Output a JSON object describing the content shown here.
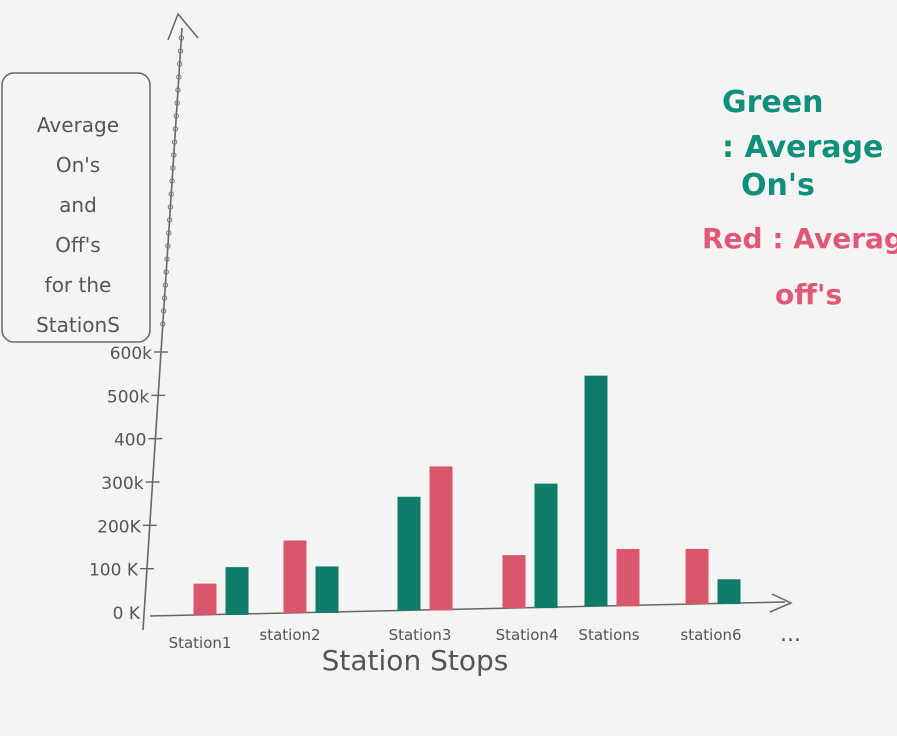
{
  "chart_data": {
    "type": "bar",
    "title_lines": [
      "Average",
      "On's",
      "and",
      "Off's",
      "for the",
      "StationS"
    ],
    "xlabel": "Station Stops",
    "ylabel": "",
    "categories": [
      "Station1",
      "station2",
      "Station3",
      "Station4",
      "Stations",
      "station6"
    ],
    "x_continuation": "...",
    "series": [
      {
        "name": "Average Off's",
        "color": "#d9566f",
        "values": [
          70,
          165,
          330,
          120,
          130,
          125
        ]
      },
      {
        "name": "Average On's",
        "color": "#0f7c6a",
        "values": [
          108,
          105,
          260,
          285,
          530,
          55
        ]
      }
    ],
    "bar_order": [
      [
        "Average Off's",
        "Average On's"
      ],
      [
        "Average Off's",
        "Average On's"
      ],
      [
        "Average On's",
        "Average Off's"
      ],
      [
        "Average Off's",
        "Average On's"
      ],
      [
        "Average On's",
        "Average Off's"
      ],
      [
        "Average Off's",
        "Average On's"
      ]
    ],
    "yticks": [
      {
        "value": 0,
        "label": "0 K"
      },
      {
        "value": 100,
        "label": "100 K"
      },
      {
        "value": 200,
        "label": "200K"
      },
      {
        "value": 300,
        "label": "300k"
      },
      {
        "value": 400,
        "label": "400"
      },
      {
        "value": 500,
        "label": "500k"
      },
      {
        "value": 600,
        "label": "600k"
      }
    ],
    "ylim": [
      0,
      600
    ],
    "grid": false,
    "legend": {
      "position": "top-right",
      "entries": [
        {
          "text_lines": [
            "Green",
            ": Average",
            "On's"
          ],
          "color": "#0f8f7c"
        },
        {
          "text_lines": [
            "Red : Averag",
            "off's"
          ],
          "color": "#e05777"
        }
      ]
    }
  }
}
